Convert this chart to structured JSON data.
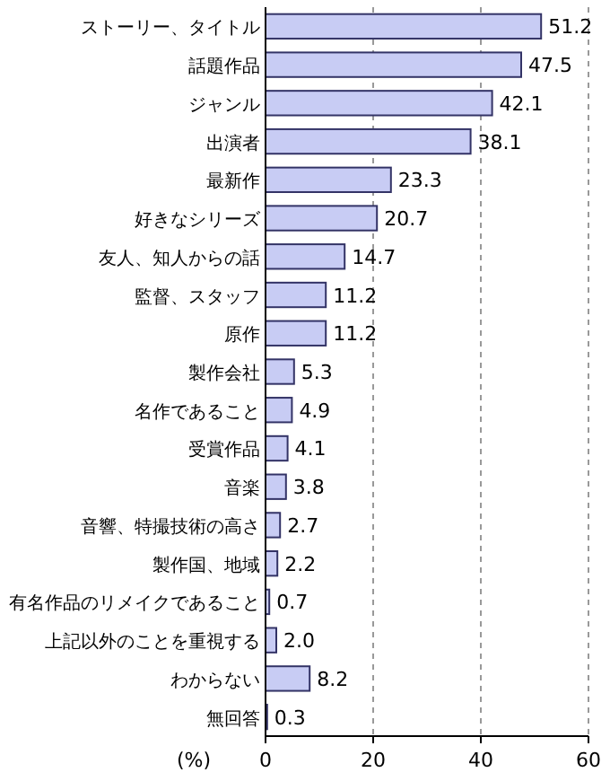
{
  "chart_data": {
    "type": "bar",
    "orientation": "horizontal",
    "xlabel": "(%)",
    "categories": [
      "ストーリー、タイトル",
      "話題作品",
      "ジャンル",
      "出演者",
      "最新作",
      "好きなシリーズ",
      "友人、知人からの話",
      "監督、スタッフ",
      "原作",
      "製作会社",
      "名作であること",
      "受賞作品",
      "音楽",
      "音響、特撮技術の高さ",
      "製作国、地域",
      "有名作品のリメイクであること",
      "上記以外のことを重視する",
      "わからない",
      "無回答"
    ],
    "values": [
      51.2,
      47.5,
      42.1,
      38.1,
      23.3,
      20.7,
      14.7,
      11.2,
      11.2,
      5.3,
      4.9,
      4.1,
      3.8,
      2.7,
      2.2,
      0.7,
      2.0,
      8.2,
      0.3
    ],
    "color": "#c8ccf4",
    "xlim": [
      0,
      60
    ],
    "xticks": [
      0,
      20,
      40,
      60
    ],
    "grid": "x",
    "value_labels": [
      "51.2",
      "47.5",
      "42.1",
      "38.1",
      "23.3",
      "20.7",
      "14.7",
      "11.2",
      "11.2",
      "5.3",
      "4.9",
      "4.1",
      "3.8",
      "2.7",
      "2.2",
      "0.7",
      "2.0",
      "8.2",
      "0.3"
    ]
  }
}
